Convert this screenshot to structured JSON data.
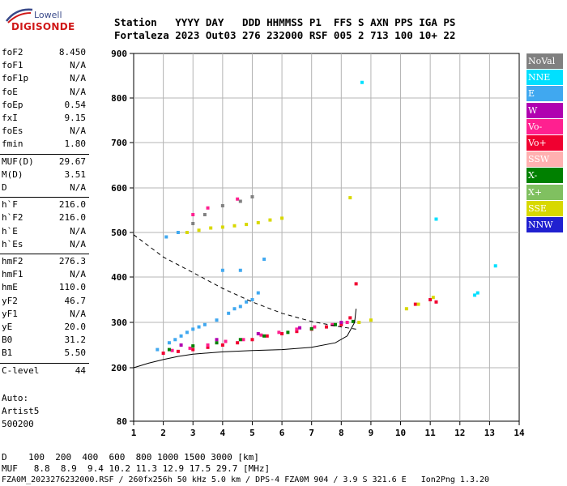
{
  "logo": {
    "line1": "Lowell",
    "line2": "DIGISONDE"
  },
  "header": {
    "row1": "Station   YYYY DAY   DDD HHMMSS P1  FFS S AXN PPS IGA PS",
    "row2": "Fortaleza 2023 Out03 276 232000 RSF 005 2 713 100 10+ 22"
  },
  "params": [
    {
      "name": "foF2",
      "value": "8.450"
    },
    {
      "name": "foF1",
      "value": "N/A"
    },
    {
      "name": "foF1p",
      "value": "N/A"
    },
    {
      "name": "foE",
      "value": "N/A"
    },
    {
      "name": "foEp",
      "value": "0.54"
    },
    {
      "name": "fxI",
      "value": "9.15"
    },
    {
      "name": "foEs",
      "value": "N/A"
    },
    {
      "name": "fmin",
      "value": "1.80"
    },
    {
      "name": "MUF(D)",
      "value": "29.67"
    },
    {
      "name": "M(D)",
      "value": "3.51"
    },
    {
      "name": "D",
      "value": "N/A"
    },
    {
      "name": "h`F",
      "value": "216.0"
    },
    {
      "name": "h`F2",
      "value": "216.0"
    },
    {
      "name": "h`E",
      "value": "N/A"
    },
    {
      "name": "h`Es",
      "value": "N/A"
    },
    {
      "name": "hmF2",
      "value": "276.3"
    },
    {
      "name": "hmF1",
      "value": "N/A"
    },
    {
      "name": "hmE",
      "value": "110.0"
    },
    {
      "name": "yF2",
      "value": "46.7"
    },
    {
      "name": "yF1",
      "value": "N/A"
    },
    {
      "name": "yE",
      "value": "20.0"
    },
    {
      "name": "B0",
      "value": "31.2"
    },
    {
      "name": "B1",
      "value": "5.50"
    },
    {
      "name": "C-level",
      "value": "44"
    }
  ],
  "auto": {
    "line1": "Auto:",
    "line2": "Artist5",
    "line3": "500200"
  },
  "legend": [
    {
      "label": "NoVal",
      "color": "#808080"
    },
    {
      "label": "NNE",
      "color": "#00e0ff"
    },
    {
      "label": "E",
      "color": "#40a8f0"
    },
    {
      "label": "W",
      "color": "#b000b0"
    },
    {
      "label": "Vo-",
      "color": "#ff2090"
    },
    {
      "label": "Vo+",
      "color": "#f00030"
    },
    {
      "label": "SSW",
      "color": "#ffb0b0"
    },
    {
      "label": "X-",
      "color": "#008000"
    },
    {
      "label": "X+",
      "color": "#80c060"
    },
    {
      "label": "SSE",
      "color": "#d8d800"
    },
    {
      "label": "NNW",
      "color": "#2020d0"
    }
  ],
  "footer": {
    "line1": "D    100  200  400  600  800 1000 1500 3000 [km]",
    "line2": "MUF   8.8  8.9  9.4 10.2 11.3 12.9 17.5 29.7 [MHz]",
    "line3": "FZA0M_2023276232000.RSF / 260fx256h 50 kHz 5.0 km / DPS-4 FZA0M 904 / 3.9 S 321.6 E   Ion2Png 1.3.20"
  },
  "chart_data": {
    "type": "scatter",
    "xlabel": "",
    "ylabel": "",
    "xlim": [
      1,
      14
    ],
    "ylim": [
      80,
      900
    ],
    "xticks": [
      1,
      2,
      3,
      4,
      5,
      6,
      7,
      8,
      9,
      10,
      11,
      12,
      13,
      14
    ],
    "yticks": [
      80,
      200,
      300,
      400,
      500,
      600,
      700,
      800,
      900
    ],
    "grid": true,
    "series": [
      {
        "name": "E",
        "color": "#40a8f0",
        "x": [
          1.8,
          2.2,
          2.6,
          3.0,
          3.4,
          3.8,
          4.2,
          4.6,
          5.0,
          2.4,
          2.8,
          3.2,
          4.4,
          4.8,
          5.2,
          4.0,
          4.6,
          5.4,
          2.1,
          2.5
        ],
        "y": [
          240,
          255,
          270,
          285,
          295,
          305,
          320,
          335,
          350,
          262,
          278,
          290,
          330,
          345,
          365,
          415,
          415,
          440,
          490,
          500
        ]
      },
      {
        "name": "Vo+",
        "color": "#f00030",
        "x": [
          2.0,
          2.5,
          3.0,
          3.5,
          4.0,
          4.5,
          5.0,
          5.5,
          6.0,
          6.5,
          7.0,
          7.5,
          8.0,
          8.3,
          8.5,
          10.5,
          11.0,
          11.2
        ],
        "y": [
          232,
          236,
          240,
          245,
          250,
          255,
          262,
          270,
          275,
          280,
          285,
          290,
          295,
          310,
          385,
          340,
          350,
          345
        ]
      },
      {
        "name": "Vo-",
        "color": "#ff2090",
        "x": [
          2.3,
          2.9,
          3.5,
          4.1,
          4.7,
          5.3,
          5.9,
          6.5,
          7.1,
          7.7,
          8.2,
          3.0,
          3.5,
          4.5
        ],
        "y": [
          238,
          243,
          250,
          258,
          262,
          272,
          278,
          285,
          290,
          295,
          300,
          540,
          555,
          575
        ]
      },
      {
        "name": "SSE",
        "color": "#d8d800",
        "x": [
          2.8,
          3.2,
          3.6,
          4.0,
          4.4,
          4.8,
          5.2,
          5.6,
          6.0,
          8.6,
          9.0,
          10.2,
          10.6,
          11.1,
          8.3
        ],
        "y": [
          500,
          505,
          510,
          512,
          515,
          518,
          522,
          528,
          532,
          300,
          305,
          330,
          340,
          355,
          578
        ]
      },
      {
        "name": "X-",
        "color": "#008000",
        "x": [
          2.2,
          3.0,
          3.8,
          4.6,
          5.4,
          6.2,
          7.0,
          7.8,
          8.4
        ],
        "y": [
          240,
          248,
          255,
          262,
          270,
          278,
          286,
          295,
          302
        ]
      },
      {
        "name": "NNE",
        "color": "#00e0ff",
        "x": [
          8.7,
          11.2,
          12.5,
          12.6,
          13.2
        ],
        "y": [
          835,
          530,
          360,
          365,
          425
        ]
      },
      {
        "name": "NoVal",
        "color": "#808080",
        "x": [
          3.0,
          3.4,
          4.0,
          4.6,
          5.0
        ],
        "y": [
          520,
          540,
          560,
          570,
          580
        ]
      },
      {
        "name": "W",
        "color": "#b000b0",
        "x": [
          2.6,
          3.8,
          5.2,
          6.6,
          8.0
        ],
        "y": [
          250,
          262,
          275,
          288,
          300
        ]
      }
    ],
    "curves": [
      {
        "name": "profile",
        "style": "solid",
        "x": [
          1.0,
          1.5,
          2.0,
          2.5,
          3.0,
          4.0,
          5.0,
          6.0,
          7.0,
          7.8,
          8.2,
          8.45,
          8.5
        ],
        "y": [
          200,
          210,
          218,
          225,
          230,
          235,
          238,
          240,
          245,
          255,
          270,
          300,
          330
        ]
      },
      {
        "name": "muf",
        "style": "dashed",
        "x": [
          1.0,
          1.5,
          2.0,
          3.0,
          4.0,
          5.0,
          6.0,
          7.0,
          8.0,
          8.5
        ],
        "y": [
          495,
          470,
          445,
          410,
          375,
          345,
          320,
          302,
          290,
          285
        ]
      }
    ]
  }
}
